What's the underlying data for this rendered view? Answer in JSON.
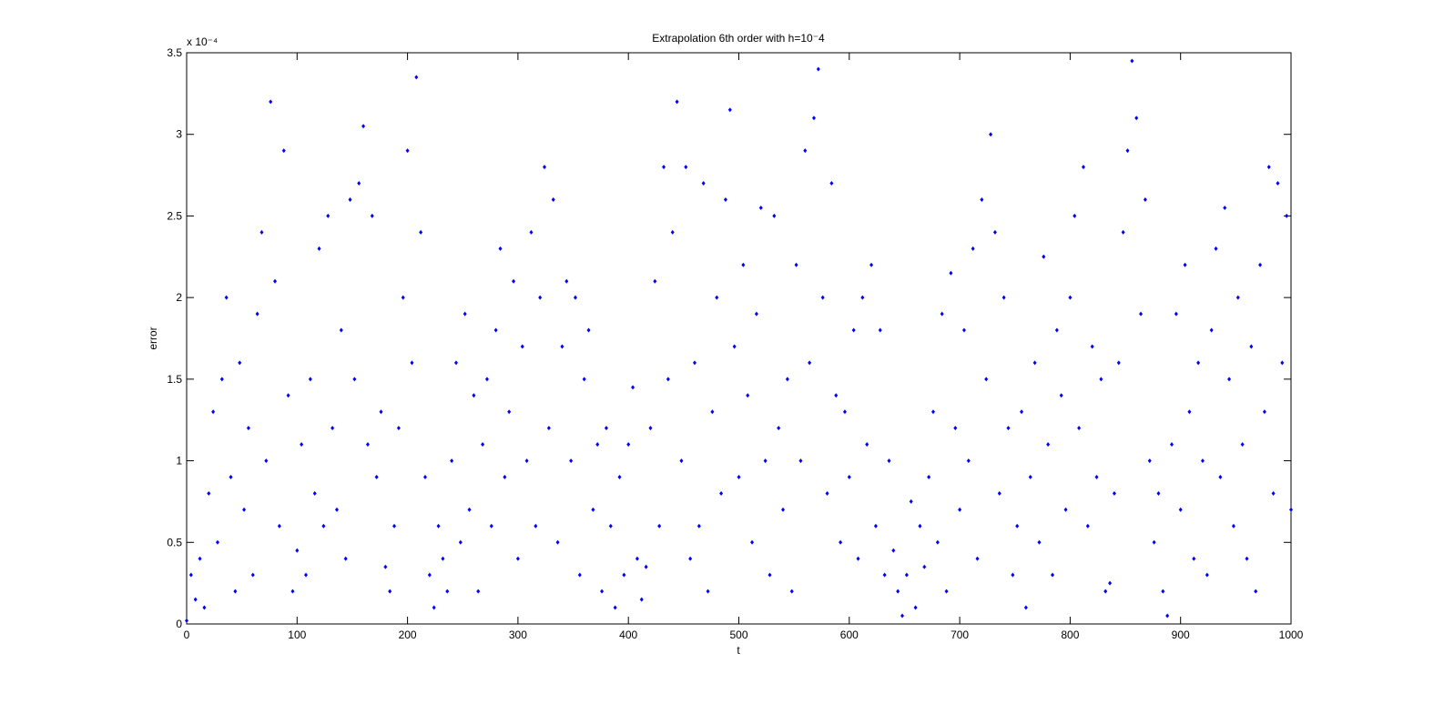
{
  "chart_data": {
    "type": "scatter",
    "title": "Extrapolation 6th order with h=10⁻4",
    "x_label": "t",
    "y_label": "error",
    "y_exponent_label": "x 10⁻⁴",
    "color": "#0000ff",
    "grid": false,
    "xlim": [
      0,
      1000
    ],
    "xticks": [
      0,
      100,
      200,
      300,
      400,
      500,
      600,
      700,
      800,
      900,
      1000
    ],
    "ylim": [
      0,
      3.5
    ],
    "yticks": [
      0,
      0.5,
      1,
      1.5,
      2,
      2.5,
      3,
      3.5
    ],
    "x": [
      0,
      4,
      8,
      12,
      16,
      20,
      24,
      28,
      32,
      36,
      40,
      44,
      48,
      52,
      56,
      60,
      64,
      68,
      72,
      76,
      80,
      84,
      88,
      92,
      96,
      100,
      104,
      108,
      112,
      116,
      120,
      124,
      128,
      132,
      136,
      140,
      144,
      148,
      152,
      156,
      160,
      164,
      168,
      172,
      176,
      180,
      184,
      188,
      192,
      196,
      200,
      204,
      208,
      212,
      216,
      220,
      224,
      228,
      232,
      236,
      240,
      244,
      248,
      252,
      256,
      260,
      264,
      268,
      272,
      276,
      280,
      284,
      288,
      292,
      296,
      300,
      304,
      308,
      312,
      316,
      320,
      324,
      328,
      332,
      336,
      340,
      344,
      348,
      352,
      356,
      360,
      364,
      368,
      372,
      376,
      380,
      384,
      388,
      392,
      396,
      400,
      404,
      408,
      412,
      416,
      420,
      424,
      428,
      432,
      436,
      440,
      444,
      448,
      452,
      456,
      460,
      464,
      468,
      472,
      476,
      480,
      484,
      488,
      492,
      496,
      500,
      504,
      508,
      512,
      516,
      520,
      524,
      528,
      532,
      536,
      540,
      544,
      548,
      552,
      556,
      560,
      564,
      568,
      572,
      576,
      580,
      584,
      588,
      592,
      596,
      600,
      604,
      608,
      612,
      616,
      620,
      624,
      628,
      632,
      636,
      640,
      644,
      648,
      652,
      656,
      660,
      664,
      668,
      672,
      676,
      680,
      684,
      688,
      692,
      696,
      700,
      704,
      708,
      712,
      716,
      720,
      724,
      728,
      732,
      736,
      740,
      744,
      748,
      752,
      756,
      760,
      764,
      768,
      772,
      776,
      780,
      784,
      788,
      792,
      796,
      800,
      804,
      808,
      812,
      816,
      820,
      824,
      828,
      832,
      836,
      840,
      844,
      848,
      852,
      856,
      860,
      864,
      868,
      872,
      876,
      880,
      884,
      888,
      892,
      896,
      900,
      904,
      908,
      912,
      916,
      920,
      924,
      928,
      932,
      936,
      940,
      944,
      948,
      952,
      956,
      960,
      964,
      968,
      972,
      976,
      980,
      984,
      988,
      992,
      996,
      1000
    ],
    "values": [
      0.02,
      0.3,
      0.15,
      0.4,
      0.1,
      0.8,
      1.3,
      0.5,
      1.5,
      2.0,
      0.9,
      0.2,
      1.6,
      0.7,
      1.2,
      0.3,
      1.9,
      2.4,
      1.0,
      3.2,
      2.1,
      0.6,
      2.9,
      1.4,
      0.2,
      0.45,
      1.1,
      0.3,
      1.5,
      0.8,
      2.3,
      0.6,
      2.5,
      1.2,
      0.7,
      1.8,
      0.4,
      2.6,
      1.5,
      2.7,
      3.05,
      1.1,
      2.5,
      0.9,
      1.3,
      0.35,
      0.2,
      0.6,
      1.2,
      2.0,
      2.9,
      1.6,
      3.35,
      2.4,
      0.9,
      0.3,
      0.1,
      0.6,
      0.4,
      0.2,
      1.0,
      1.6,
      0.5,
      1.9,
      0.7,
      1.4,
      0.2,
      1.1,
      1.5,
      0.6,
      1.8,
      2.3,
      0.9,
      1.3,
      2.1,
      0.4,
      1.7,
      1.0,
      2.4,
      0.6,
      2.0,
      2.8,
      1.2,
      2.6,
      0.5,
      1.7,
      2.1,
      1.0,
      2.0,
      0.3,
      1.5,
      1.8,
      0.7,
      1.1,
      0.2,
      1.2,
      0.6,
      0.1,
      0.9,
      0.3,
      1.1,
      1.45,
      0.4,
      0.15,
      0.35,
      1.2,
      2.1,
      0.6,
      2.8,
      1.5,
      2.4,
      3.2,
      1.0,
      2.8,
      0.4,
      1.6,
      0.6,
      2.7,
      0.2,
      1.3,
      2.0,
      0.8,
      2.6,
      3.15,
      1.7,
      0.9,
      2.2,
      1.4,
      0.5,
      1.9,
      2.55,
      1.0,
      0.3,
      2.5,
      1.2,
      0.7,
      1.5,
      0.2,
      2.2,
      1.0,
      2.9,
      1.6,
      3.1,
      3.4,
      2.0,
      0.8,
      2.7,
      1.4,
      0.5,
      1.3,
      0.9,
      1.8,
      0.4,
      2.0,
      1.1,
      2.2,
      0.6,
      1.8,
      0.3,
      1.0,
      0.45,
      0.2,
      0.05,
      0.3,
      0.75,
      0.1,
      0.6,
      0.35,
      0.9,
      1.3,
      0.5,
      1.9,
      0.2,
      2.15,
      1.2,
      0.7,
      1.8,
      1.0,
      2.3,
      0.4,
      2.6,
      1.5,
      3.0,
      2.4,
      0.8,
      2.0,
      1.2,
      0.3,
      0.6,
      1.3,
      0.1,
      0.9,
      1.6,
      0.5,
      2.25,
      1.1,
      0.3,
      1.8,
      1.4,
      0.7,
      2.0,
      2.5,
      1.2,
      2.8,
      0.6,
      1.7,
      0.9,
      1.5,
      0.2,
      0.25,
      0.8,
      1.6,
      2.4,
      2.9,
      3.45,
      3.1,
      1.9,
      2.6,
      1.0,
      0.5,
      0.8,
      0.2,
      0.05,
      1.1,
      1.9,
      0.7,
      2.2,
      1.3,
      0.4,
      1.6,
      1.0,
      0.3,
      1.8,
      2.3,
      0.9,
      2.55,
      1.5,
      0.6,
      2.0,
      1.1,
      0.4,
      1.7,
      0.2,
      2.2,
      1.3,
      2.8,
      0.8,
      2.7,
      1.6,
      2.5,
      0.7
    ]
  }
}
